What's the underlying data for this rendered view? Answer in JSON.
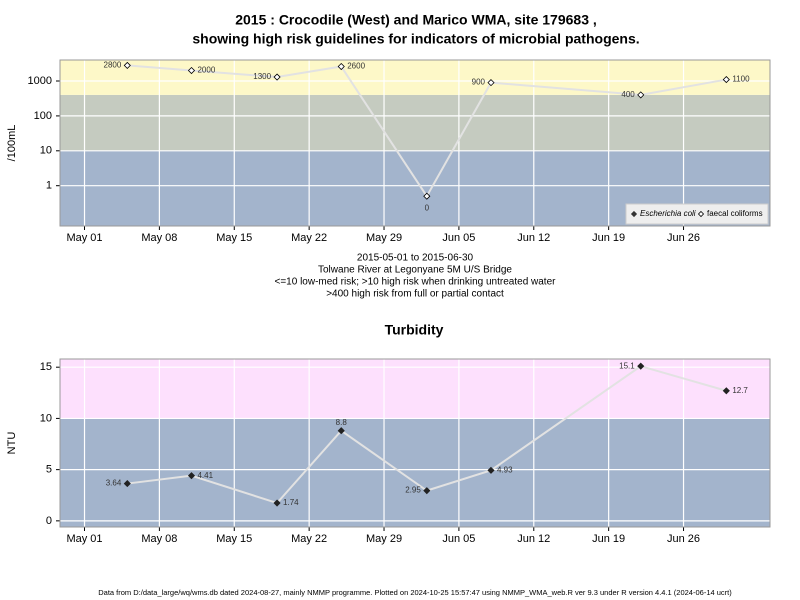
{
  "chart_data": [
    {
      "type": "line",
      "title_lines": [
        "2015 : Crocodile (West) and Marico WMA, site 179683 ,",
        "showing high risk guidelines for indicators of microbial pathogens."
      ],
      "subtitle_lines": [
        "2015-05-01 to 2015-06-30",
        "Tolwane River at Legonyane 5M U/S Bridge",
        "<=10 low-med risk; >10 high risk when drinking untreated water",
        ">400 high risk from full or partial contact"
      ],
      "ylabel": "/100mL",
      "log_scale": true,
      "x": [
        "2015-05-05",
        "2015-05-11",
        "2015-05-19",
        "2015-05-25",
        "2015-06-02",
        "2015-06-08",
        "2015-06-22",
        "2015-06-30"
      ],
      "series": [
        {
          "name": "Escherichia coli",
          "color": "#333333",
          "marker": "filled-diamond",
          "values": [
            null,
            null,
            null,
            null,
            null,
            null,
            null,
            null
          ]
        },
        {
          "name": "faecal coliforms",
          "color": "#000000",
          "marker": "open-diamond",
          "values": [
            2800,
            2000,
            1300,
            2600,
            0.5,
            900,
            400,
            1100
          ],
          "value_labels": [
            "2800",
            "2000",
            "1300",
            "2600",
            "0",
            "900",
            "400",
            "1100"
          ]
        }
      ],
      "xlim": [
        "2015-04-28T17:00:00Z",
        "2015-07-04T02:00:00Z"
      ],
      "xticks": [
        {
          "value": "2015-05-01",
          "label": "May 01"
        },
        {
          "value": "2015-05-08",
          "label": "May 08"
        },
        {
          "value": "2015-05-15",
          "label": "May 15"
        },
        {
          "value": "2015-05-22",
          "label": "May 22"
        },
        {
          "value": "2015-05-29",
          "label": "May 29"
        },
        {
          "value": "2015-06-05",
          "label": "Jun 05"
        },
        {
          "value": "2015-06-12",
          "label": "Jun 12"
        },
        {
          "value": "2015-06-19",
          "label": "Jun 19"
        },
        {
          "value": "2015-06-26",
          "label": "Jun 26"
        }
      ],
      "ylim": [
        0.07,
        4000
      ],
      "yticks": [
        1,
        10,
        100,
        1000
      ],
      "band_breaks": [
        10,
        400
      ],
      "band_colors": [
        "#a3b4cc",
        "#c5cbc0",
        "#fdf8c8"
      ],
      "grid": true,
      "legend": "bottom-right"
    },
    {
      "type": "line",
      "title": "Turbidity",
      "ylabel": "NTU",
      "log_scale": false,
      "x": [
        "2015-05-05",
        "2015-05-11",
        "2015-05-19",
        "2015-05-25",
        "2015-06-02",
        "2015-06-08",
        "2015-06-22",
        "2015-06-30"
      ],
      "series": [
        {
          "name": "Turbidity",
          "color": "#222222",
          "marker": "filled-diamond",
          "values": [
            3.64,
            4.41,
            1.74,
            8.8,
            2.95,
            4.93,
            15.1,
            12.7
          ]
        }
      ],
      "xlim": [
        "2015-04-28T17:00:00Z",
        "2015-07-04T02:00:00Z"
      ],
      "xticks": [
        {
          "value": "2015-05-01",
          "label": "May 01"
        },
        {
          "value": "2015-05-08",
          "label": "May 08"
        },
        {
          "value": "2015-05-15",
          "label": "May 15"
        },
        {
          "value": "2015-05-22",
          "label": "May 22"
        },
        {
          "value": "2015-05-29",
          "label": "May 29"
        },
        {
          "value": "2015-06-05",
          "label": "Jun 05"
        },
        {
          "value": "2015-06-12",
          "label": "Jun 12"
        },
        {
          "value": "2015-06-19",
          "label": "Jun 19"
        },
        {
          "value": "2015-06-26",
          "label": "Jun 26"
        }
      ],
      "ylim": [
        -0.6,
        15.8
      ],
      "yticks": [
        0,
        5,
        10,
        15
      ],
      "band_breaks": [
        10
      ],
      "band_colors": [
        "#a3b4cc",
        "#fde0fd"
      ],
      "grid": true
    }
  ],
  "footer": "Data from D:/data_large/wq/wms.db dated 2024-08-27, mainly NMMP programme. Plotted on 2024-10-25 15:57:47 using NMMP_WMA_web.R ver 9.3 under R version 4.4.1 (2024-06-14 ucrt)"
}
